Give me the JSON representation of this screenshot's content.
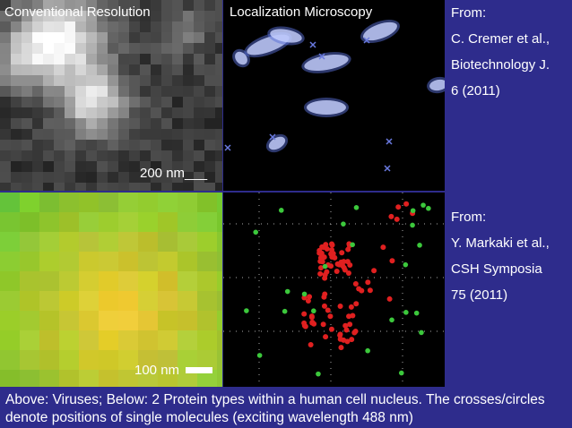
{
  "panels": {
    "conventional": "Conventional Resolution",
    "localization": "Localization Microscopy"
  },
  "sources": [
    {
      "lines": [
        "From:",
        "C. Cremer et al.,",
        "Biotechnology J.",
        "6 (2011)"
      ]
    },
    {
      "lines": [
        "From:",
        "Y. Markaki et al.,",
        "CSH Symposia",
        "75 (2011)"
      ]
    }
  ],
  "scale_bars": [
    "200 nm___",
    "100 nm"
  ],
  "caption": "Above: Viruses; Below: 2 Protein types within a human cell nucleus. The crosses/circles denote positions of single molecules (exciting wavelength 488 nm)"
}
